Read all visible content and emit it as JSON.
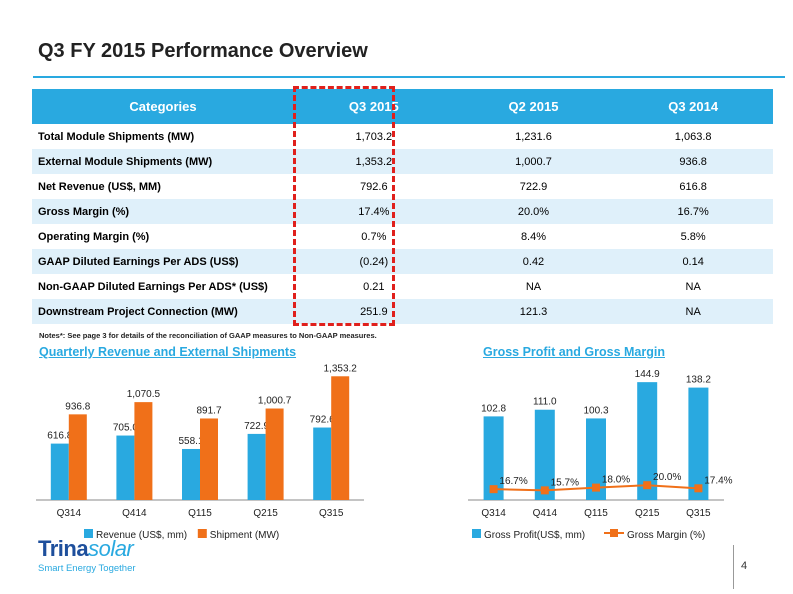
{
  "page": {
    "title": "Q3 FY 2015 Performance Overview",
    "notes": "Notes*: See page 3 for details of the reconciliation of GAAP measures to Non-GAAP measures.",
    "page_number": "4",
    "logo": {
      "name_main": "Trina",
      "name_sub": "solar",
      "tagline": "Smart Energy Together"
    },
    "colors": {
      "accent": "#29a9e0",
      "bar_orange": "#f07019",
      "highlight_red": "#e0201c",
      "row_alt": "#dff0fa"
    }
  },
  "table": {
    "headers": [
      "Categories",
      "Q3 2015",
      "Q2 2015",
      "Q3 2014"
    ],
    "rows": [
      [
        "Total Module Shipments (MW)",
        "1,703.2",
        "1,231.6",
        "1,063.8"
      ],
      [
        "External Module Shipments (MW)",
        "1,353.2",
        "1,000.7",
        "936.8"
      ],
      [
        "Net Revenue (US$, MM)",
        "792.6",
        "722.9",
        "616.8"
      ],
      [
        "Gross Margin (%)",
        "17.4%",
        "20.0%",
        "16.7%"
      ],
      [
        "Operating Margin  (%)",
        "0.7%",
        "8.4%",
        "5.8%"
      ],
      [
        "GAAP Diluted Earnings Per ADS (US$)",
        "(0.24)",
        "0.42",
        "0.14"
      ],
      [
        "Non-GAAP Diluted Earnings Per ADS* (US$)",
        "0.21",
        "NA",
        "NA"
      ],
      [
        "Downstream Project Connection (MW)",
        "251.9",
        "121.3",
        "NA"
      ]
    ]
  },
  "chart_data": [
    {
      "type": "bar",
      "title": "Quarterly Revenue and External Shipments",
      "categories": [
        "Q314",
        "Q414",
        "Q115",
        "Q215",
        "Q315"
      ],
      "series": [
        {
          "name": "Revenue (US$, mm)",
          "values": [
            616.8,
            705.0,
            558.1,
            722.9,
            792.6
          ],
          "labels": [
            "616.8",
            "705.0",
            "558.1",
            "722.9",
            "792.6"
          ],
          "color": "#29a9e0"
        },
        {
          "name": "Shipment (MW)",
          "values": [
            936.8,
            1070.5,
            891.7,
            1000.7,
            1353.2
          ],
          "labels": [
            "936.8",
            "1,070.5",
            "891.7",
            "1,000.7",
            "1,353.2"
          ],
          "color": "#f07019"
        }
      ],
      "ylim": [
        0,
        1400
      ],
      "legend": "bottom"
    },
    {
      "type": "bar",
      "title": "Gross Profit and Gross Margin",
      "categories": [
        "Q314",
        "Q414",
        "Q115",
        "Q215",
        "Q315"
      ],
      "series": [
        {
          "name": "Gross Profit(US$, mm)",
          "values": [
            102.8,
            111.0,
            100.3,
            144.9,
            138.2
          ],
          "labels": [
            "102.8",
            "111.0",
            "100.3",
            "144.9",
            "138.2"
          ],
          "color": "#29a9e0"
        },
        {
          "name": "Gross Margin (%)",
          "type": "line",
          "values": [
            16.7,
            15.7,
            18.0,
            20.0,
            17.4
          ],
          "labels": [
            "16.7%",
            "15.7%",
            "18.0%",
            "20.0%",
            "17.4%"
          ],
          "color": "#f07019"
        }
      ],
      "ylim": [
        0,
        150
      ],
      "legend": "bottom"
    }
  ]
}
